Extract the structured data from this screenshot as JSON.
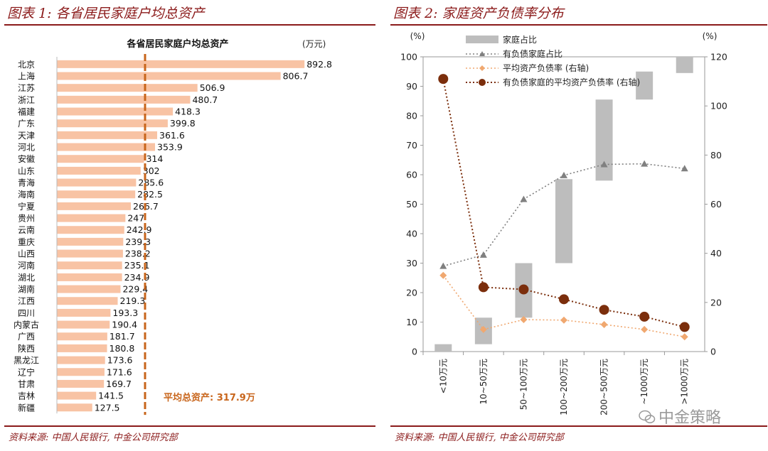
{
  "left": {
    "figure_title": "图表 1:  各省居民家庭户均总资产",
    "source": "资料来源:  中国人民银行,  中金公司研究部",
    "chart_data": {
      "type": "bar",
      "orientation": "horizontal",
      "title": "各省居民家庭户均总资产",
      "unit": "(万元)",
      "categories": [
        "北京",
        "上海",
        "江苏",
        "浙江",
        "福建",
        "广东",
        "天津",
        "河北",
        "安徽",
        "山东",
        "青海",
        "海南",
        "宁夏",
        "贵州",
        "云南",
        "重庆",
        "山西",
        "河南",
        "湖北",
        "湖南",
        "江西",
        "四川",
        "内蒙古",
        "广西",
        "陕西",
        "黑龙江",
        "辽宁",
        "甘肃",
        "吉林",
        "新疆"
      ],
      "values": [
        892.8,
        806.7,
        506.9,
        480.7,
        418.3,
        399.8,
        361.6,
        353.9,
        314,
        302,
        285.6,
        282.5,
        266.7,
        247,
        242.9,
        239.3,
        238.2,
        235.1,
        234.9,
        229.4,
        219.3,
        193.3,
        190.4,
        181.7,
        180.8,
        173.6,
        171.6,
        169.7,
        141.5,
        127.5
      ],
      "labels": [
        "892.8",
        "806.7",
        "506.9",
        "480.7",
        "418.3",
        "399.8",
        "361.6",
        "353.9",
        "314",
        "302",
        "285.6",
        "282.5",
        "266.7",
        "247",
        "242.9",
        "239.3",
        "238.2",
        "235.1",
        "234.9",
        "229.4",
        "219.3",
        "193.3",
        "190.4",
        "181.7",
        "180.8",
        "173.6",
        "171.6",
        "169.7",
        "141.5",
        "127.5"
      ],
      "average_line": 317.9,
      "average_label": "平均总资产:  317.9万",
      "xlim": [
        0,
        1000
      ],
      "colors": {
        "bar": "#f8c3a4",
        "average": "#c8651b",
        "average_text": "#c8651b"
      }
    }
  },
  "right": {
    "figure_title": "图表 2:  家庭资产负债率分布",
    "source": "资料来源:  中国人民银行,  中金公司研究部",
    "chart_data": {
      "type": "combo",
      "categories": [
        "<10万元",
        "10~50万元",
        "50~100万元",
        "100~200万元",
        "200~500万元",
        "~1000万元",
        ">1000万元"
      ],
      "left_axis": {
        "unit": "(%)",
        "ylim": [
          0,
          100
        ],
        "ticks": [
          "0",
          "10",
          "20",
          "30",
          "40",
          "50",
          "60",
          "70",
          "80",
          "90",
          "100"
        ]
      },
      "right_axis": {
        "unit": "(%)",
        "ylim": [
          0,
          120
        ],
        "ticks": [
          "0",
          "20",
          "40",
          "60",
          "80",
          "100",
          "120"
        ]
      },
      "series": [
        {
          "name": "家庭占比",
          "kind": "floating-bar",
          "axis": "left",
          "low": [
            0,
            2.5,
            11.5,
            30,
            58,
            85.5,
            94.5
          ],
          "high": [
            2.5,
            11.5,
            30,
            58.5,
            85.5,
            95,
            100
          ],
          "color": "#bdbdbd"
        },
        {
          "name": "有负债家庭占比",
          "kind": "line",
          "axis": "left",
          "values": [
            29,
            32.8,
            51.7,
            59.8,
            63.5,
            63.7,
            62.1
          ],
          "color": "#808080",
          "marker": "triangle"
        },
        {
          "name": "平均资产负债率 (右轴)",
          "kind": "line",
          "axis": "right",
          "values": [
            31,
            9,
            13,
            12.8,
            11,
            9,
            6
          ],
          "color": "#f0a870",
          "marker": "diamond"
        },
        {
          "name": "有负债家庭的平均资产负债率 (右轴)",
          "kind": "line",
          "axis": "right",
          "values": [
            111,
            26.2,
            25.3,
            21.3,
            17,
            14.2,
            10
          ],
          "color": "#7b2e0c",
          "marker": "circle"
        }
      ]
    }
  },
  "watermark": "中金策略",
  "colors": {
    "header_red": "#8b1a1a"
  }
}
